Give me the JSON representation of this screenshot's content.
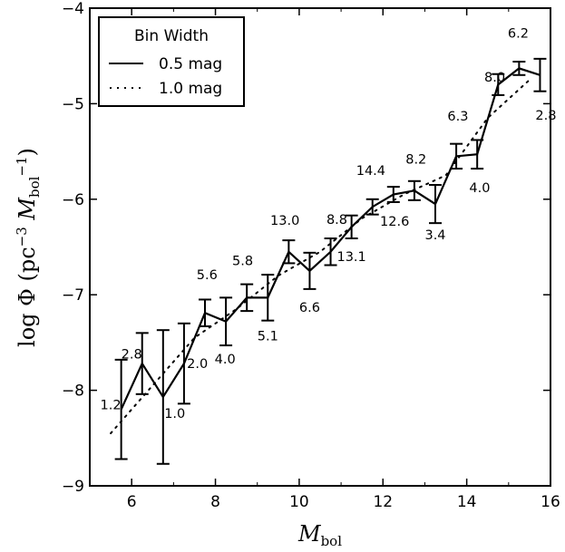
{
  "chart_data": {
    "type": "line",
    "xlabel_main": "M",
    "xlabel_sub": "bol",
    "ylabel_pre": "log Φ (pc",
    "ylabel_sup1": "−3",
    "ylabel_mid": "M",
    "ylabel_sub": "bol",
    "ylabel_sup2": "−1",
    "ylabel_post": ")",
    "xlim": [
      5,
      16
    ],
    "ylim": [
      -9,
      -4
    ],
    "xticks": [
      6,
      8,
      10,
      12,
      14,
      16
    ],
    "xtick_labels": [
      "6",
      "8",
      "10",
      "12",
      "14",
      "16"
    ],
    "yticks": [
      -9,
      -8,
      -7,
      -6,
      -5,
      -4
    ],
    "ytick_labels": [
      "−9",
      "−8",
      "−7",
      "−6",
      "−5",
      "−4"
    ],
    "legend": {
      "title": "Bin Width",
      "position": "top-left",
      "entries": [
        "0.5 mag",
        "1.0 mag"
      ]
    },
    "series": [
      {
        "name": "0.5 mag",
        "style": "solid",
        "x": [
          5.75,
          6.25,
          6.75,
          7.25,
          7.75,
          8.25,
          8.75,
          9.25,
          9.75,
          10.25,
          10.75,
          11.25,
          11.75,
          12.25,
          12.75,
          13.25,
          13.75,
          14.25,
          14.75,
          15.25,
          15.75
        ],
        "y": [
          -8.2,
          -7.72,
          -8.07,
          -7.72,
          -7.19,
          -7.28,
          -7.03,
          -7.03,
          -6.55,
          -6.75,
          -6.55,
          -6.29,
          -6.08,
          -5.95,
          -5.91,
          -6.05,
          -5.55,
          -5.53,
          -4.8,
          -4.63,
          -4.7
        ],
        "err": [
          0.52,
          0.32,
          0.7,
          0.42,
          0.14,
          0.25,
          0.14,
          0.24,
          0.12,
          0.19,
          0.14,
          0.12,
          0.08,
          0.08,
          0.1,
          0.2,
          0.13,
          0.15,
          0.11,
          0.07,
          0.17
        ],
        "counts": [
          "1.2",
          "2.8",
          "1.0",
          "2.0",
          "5.6",
          "4.0",
          "5.8",
          "5.1",
          "13.0",
          "6.6",
          "8.8",
          "13.1",
          "",
          "12.6",
          "8.2",
          "3.4",
          "6.3",
          "4.0",
          "8.0",
          "6.2",
          "2.8"
        ]
      },
      {
        "name": "1.0 mag",
        "style": "dotted",
        "x": [
          5.5,
          6.5,
          7.5,
          8.5,
          9.5,
          10.5,
          11.5,
          12.5,
          13.5,
          14.5,
          15.5
        ],
        "y": [
          -8.45,
          -7.95,
          -7.45,
          -7.15,
          -6.8,
          -6.55,
          -6.2,
          -5.95,
          -5.75,
          -5.15,
          -4.75
        ]
      }
    ],
    "annotations": [
      {
        "text": "1.2",
        "x": 5.5,
        "y": -8.15
      },
      {
        "text": "2.8",
        "x": 6.0,
        "y": -7.62
      },
      {
        "text": "1.0",
        "x": 7.03,
        "y": -8.24
      },
      {
        "text": "2.0",
        "x": 7.57,
        "y": -7.72
      },
      {
        "text": "5.6",
        "x": 7.8,
        "y": -6.79
      },
      {
        "text": "4.0",
        "x": 8.23,
        "y": -7.67
      },
      {
        "text": "5.8",
        "x": 8.65,
        "y": -6.64
      },
      {
        "text": "5.1",
        "x": 9.25,
        "y": -7.43
      },
      {
        "text": "13.0",
        "x": 9.66,
        "y": -6.22
      },
      {
        "text": "6.6",
        "x": 10.25,
        "y": -7.13
      },
      {
        "text": "8.8",
        "x": 10.9,
        "y": -6.21
      },
      {
        "text": "13.1",
        "x": 11.25,
        "y": -6.6
      },
      {
        "text": "14.4",
        "x": 11.71,
        "y": -5.7
      },
      {
        "text": "12.6",
        "x": 12.28,
        "y": -6.23
      },
      {
        "text": "8.2",
        "x": 12.79,
        "y": -5.58
      },
      {
        "text": "3.4",
        "x": 13.25,
        "y": -6.37
      },
      {
        "text": "6.3",
        "x": 13.79,
        "y": -5.13
      },
      {
        "text": "4.0",
        "x": 14.31,
        "y": -5.88
      },
      {
        "text": "8.0",
        "x": 14.67,
        "y": -4.72
      },
      {
        "text": "6.2",
        "x": 15.23,
        "y": -4.26
      },
      {
        "text": "2.8",
        "x": 15.89,
        "y": -5.12
      }
    ]
  }
}
